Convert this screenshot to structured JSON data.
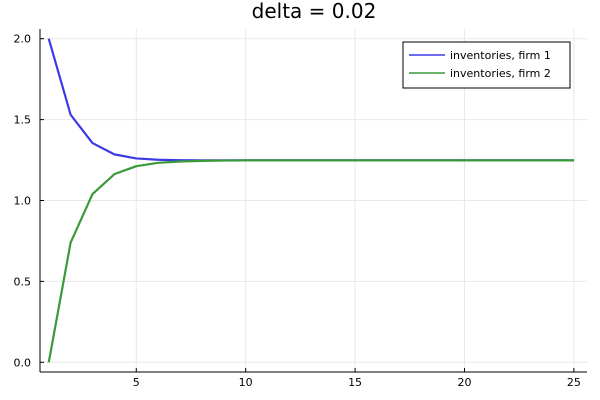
{
  "chart_data": {
    "type": "line",
    "title": "delta = 0.02",
    "xlabel": "",
    "ylabel": "",
    "xlim": [
      0.6,
      25.6
    ],
    "ylim": [
      -0.06,
      2.06
    ],
    "xticks": [
      5,
      10,
      15,
      20,
      25
    ],
    "yticks": [
      0.0,
      0.5,
      1.0,
      1.5,
      2.0
    ],
    "xtick_labels": [
      "5",
      "10",
      "15",
      "20",
      "25"
    ],
    "ytick_labels": [
      "0.0",
      "0.5",
      "1.0",
      "1.5",
      "2.0"
    ],
    "grid": true,
    "legend_position": "top-right",
    "x": [
      1,
      2,
      3,
      4,
      5,
      6,
      7,
      8,
      9,
      10,
      11,
      12,
      13,
      14,
      15,
      16,
      17,
      18,
      19,
      20,
      21,
      22,
      23,
      24,
      25
    ],
    "series": [
      {
        "name": "inventories, firm 1",
        "color": "#3a3ae6",
        "values": [
          2.0,
          1.53,
          1.355,
          1.285,
          1.26,
          1.252,
          1.249,
          1.248,
          1.248,
          1.248,
          1.248,
          1.248,
          1.248,
          1.248,
          1.248,
          1.248,
          1.248,
          1.248,
          1.248,
          1.248,
          1.248,
          1.248,
          1.248,
          1.248,
          1.248
        ]
      },
      {
        "name": "inventories, firm 2",
        "color": "#3a9a3a",
        "values": [
          0.0,
          0.74,
          1.04,
          1.163,
          1.212,
          1.233,
          1.241,
          1.245,
          1.247,
          1.248,
          1.248,
          1.248,
          1.248,
          1.248,
          1.248,
          1.248,
          1.248,
          1.248,
          1.248,
          1.248,
          1.248,
          1.248,
          1.248,
          1.248,
          1.248
        ]
      }
    ]
  }
}
